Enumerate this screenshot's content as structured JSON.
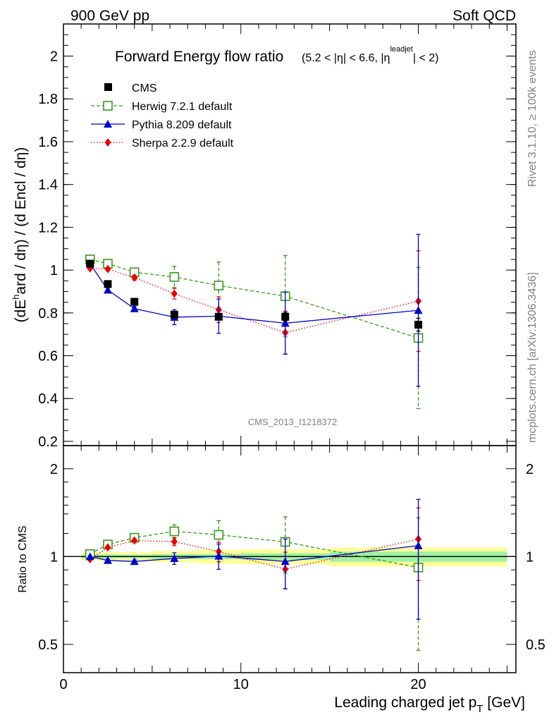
{
  "header": {
    "left": "900 GeV pp",
    "right": "Soft QCD"
  },
  "side_text": {
    "rivet": "Rivet 3.1.10, ≥ 100k events",
    "mcplots": "mcplots.cern.ch [arXiv:1306.3436]"
  },
  "colors": {
    "cms": "#000000",
    "herwig": "#3a9a1a",
    "pythia": "#0000cc",
    "sherpa": "#ee0000",
    "band_inner": "#a0f0a0",
    "band_outer": "#ffff9a"
  },
  "chart_data": [
    {
      "type": "scatter",
      "title_main": "Forward Energy flow ratio",
      "title_cut_a": "(5.2 < |η| < 6.6, |η",
      "title_cut_sup": "leadjet",
      "title_cut_b": "| < 2)",
      "ylabel_a": "(dE",
      "ylabel_sup": "h",
      "ylabel_b": "ard / dη) / (d Encl / dη)",
      "analysis_label": "CMS_2013_I1218372",
      "xlim": [
        0,
        25.5
      ],
      "ylim": [
        0.18,
        2.15
      ],
      "yticks": [
        0.2,
        0.4,
        0.6,
        0.8,
        1,
        1.2,
        1.4,
        1.6,
        1.8,
        2
      ],
      "ytick_labels": [
        "0.2",
        "0.4",
        "0.6",
        "0.8",
        "1",
        "1.2",
        "1.4",
        "1.6",
        "1.8",
        "2"
      ],
      "legend": [
        "CMS",
        "Herwig 7.2.1 default",
        "Pythia 8.209 default",
        "Sherpa 2.2.9 default"
      ],
      "series": [
        {
          "name": "CMS",
          "style": "square-filled",
          "x": [
            1.5,
            2.5,
            4.0,
            6.25,
            8.75,
            12.5,
            20.0
          ],
          "y": [
            1.03,
            0.935,
            0.852,
            0.792,
            0.782,
            0.782,
            0.745
          ],
          "err": [
            0.015,
            0.015,
            0.012,
            0.015,
            0.015,
            0.02,
            0.03
          ]
        },
        {
          "name": "Herwig 7.2.1 default",
          "style": "square-open",
          "line": "dashed",
          "x": [
            1.5,
            2.5,
            4.0,
            6.25,
            8.75,
            12.5,
            20.0
          ],
          "y": [
            1.05,
            1.03,
            0.99,
            0.968,
            0.928,
            0.878,
            0.683
          ],
          "err": [
            0.01,
            0.01,
            0.015,
            0.05,
            0.11,
            0.19,
            0.33
          ]
        },
        {
          "name": "Pythia 8.209 default",
          "style": "triangle",
          "line": "solid",
          "x": [
            1.5,
            2.5,
            4.0,
            6.25,
            8.75,
            12.5,
            20.0
          ],
          "y": [
            1.03,
            0.907,
            0.82,
            0.78,
            0.785,
            0.752,
            0.812
          ],
          "err": [
            0.005,
            0.01,
            0.01,
            0.035,
            0.08,
            0.145,
            0.355
          ]
        },
        {
          "name": "Sherpa 2.2.9 default",
          "style": "diamond",
          "line": "dotted",
          "x": [
            1.5,
            2.5,
            4.0,
            6.25,
            8.75,
            12.5,
            20.0
          ],
          "y": [
            1.008,
            1.005,
            0.965,
            0.89,
            0.815,
            0.708,
            0.855
          ],
          "err": [
            0.005,
            0.008,
            0.012,
            0.025,
            0.06,
            0.1,
            0.235
          ]
        }
      ]
    },
    {
      "type": "scatter",
      "ylabel": "Ratio to CMS",
      "xlabel_a": "Leading charged jet p",
      "xlabel_sub": "T",
      "xlabel_b": " [GeV]",
      "xlim": [
        0,
        25.5
      ],
      "ylim": [
        0.4,
        2.4
      ],
      "yscale": "log",
      "xticks": [
        0,
        10,
        20
      ],
      "xtick_labels": [
        "0",
        "10",
        "20"
      ],
      "yticks": [
        0.5,
        1,
        2
      ],
      "ytick_labels": [
        "0.5",
        "1",
        "2"
      ],
      "band_bins": [
        [
          1,
          2
        ],
        [
          2,
          3
        ],
        [
          3,
          5
        ],
        [
          5,
          7.5
        ],
        [
          7.5,
          10
        ],
        [
          10,
          15
        ],
        [
          15,
          25
        ]
      ],
      "band_inner": [
        0.015,
        0.016,
        0.014,
        0.019,
        0.02,
        0.026,
        0.04
      ],
      "band_outer": [
        0.03,
        0.035,
        0.035,
        0.045,
        0.055,
        0.06,
        0.075
      ],
      "series": [
        {
          "name": "Herwig 7.2.1 default",
          "style": "square-open",
          "line": "dashed",
          "x": [
            1.5,
            2.5,
            4.0,
            6.25,
            8.75,
            12.5,
            20.0
          ],
          "y": [
            1.02,
            1.1,
            1.16,
            1.22,
            1.187,
            1.123,
            0.917
          ],
          "err": [
            0.01,
            0.012,
            0.02,
            0.065,
            0.14,
            0.245,
            0.44
          ]
        },
        {
          "name": "Pythia 8.209 default",
          "style": "triangle",
          "line": "solid",
          "x": [
            1.5,
            2.5,
            4.0,
            6.25,
            8.75,
            12.5,
            20.0
          ],
          "y": [
            1.0,
            0.97,
            0.962,
            0.985,
            1.004,
            0.962,
            1.09
          ],
          "err": [
            0.005,
            0.01,
            0.012,
            0.045,
            0.1,
            0.186,
            0.48
          ]
        },
        {
          "name": "Sherpa 2.2.9 default",
          "style": "diamond",
          "line": "dotted",
          "x": [
            1.5,
            2.5,
            4.0,
            6.25,
            8.75,
            12.5,
            20.0
          ],
          "y": [
            0.979,
            1.075,
            1.135,
            1.125,
            1.04,
            0.905,
            1.148
          ],
          "err": [
            0.005,
            0.01,
            0.015,
            0.035,
            0.08,
            0.13,
            0.32
          ]
        }
      ]
    }
  ]
}
